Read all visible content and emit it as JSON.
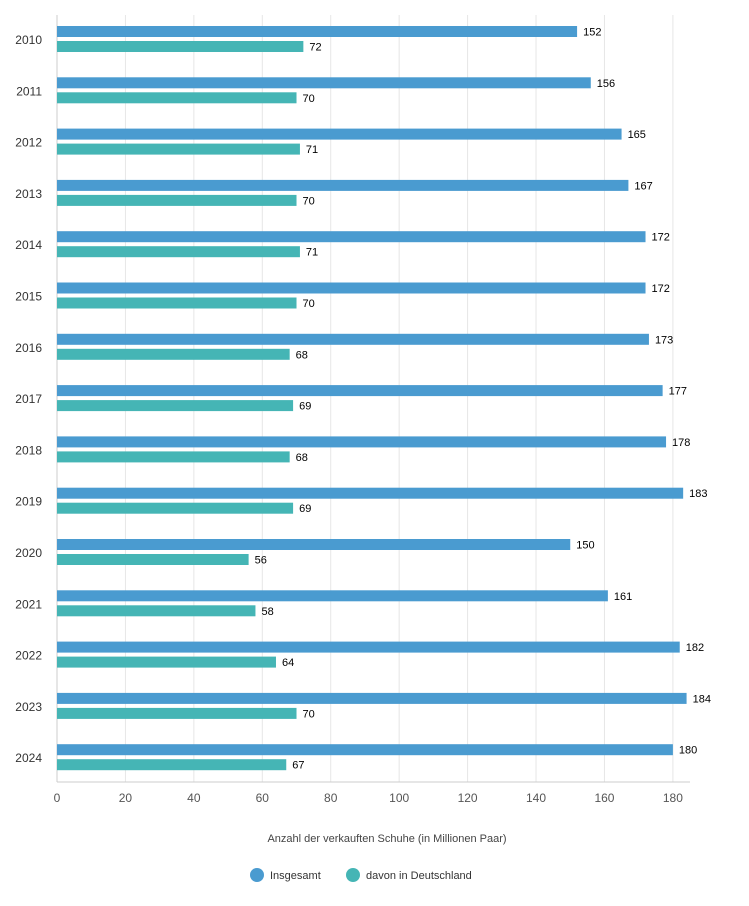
{
  "chart_data": {
    "type": "bar",
    "orientation": "horizontal",
    "categories": [
      "2010",
      "2011",
      "2012",
      "2013",
      "2014",
      "2015",
      "2016",
      "2017",
      "2018",
      "2019",
      "2020",
      "2021",
      "2022",
      "2023",
      "2024"
    ],
    "series": [
      {
        "name": "Insgesamt",
        "color": "#4a9bd0",
        "values": [
          152,
          156,
          165,
          167,
          172,
          172,
          173,
          177,
          178,
          183,
          150,
          161,
          182,
          184,
          180
        ]
      },
      {
        "name": "davon in Deutschland",
        "color": "#45b5b5",
        "values": [
          72,
          70,
          71,
          70,
          71,
          70,
          68,
          69,
          68,
          69,
          56,
          58,
          64,
          70,
          67
        ]
      }
    ],
    "xlabel": "Anzahl der verkauften Schuhe (in Millionen Paar)",
    "xlim": [
      0,
      185
    ],
    "xticks": [
      0,
      20,
      40,
      60,
      80,
      100,
      120,
      140,
      160,
      180
    ],
    "grid": true,
    "legend_position": "bottom-center"
  }
}
